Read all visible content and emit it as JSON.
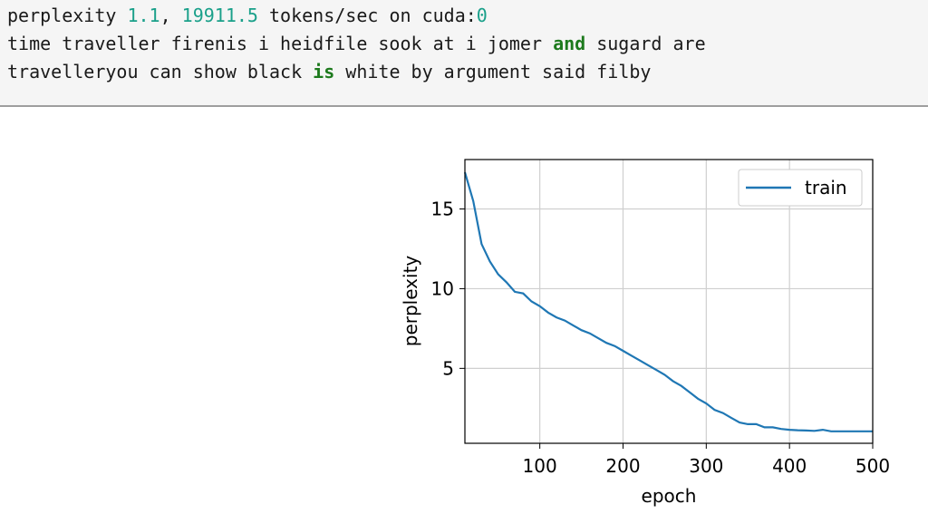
{
  "output": {
    "line1": {
      "prefix": "perplexity ",
      "perplexity": "1.1",
      "sep": ", ",
      "speed": "19911.5",
      "suffix": " tokens/sec on cuda:",
      "device_id": "0"
    },
    "line2": {
      "before": "time traveller firenis i heidfile sook at i jomer ",
      "keyword": "and",
      "after": " sugard are"
    },
    "line3": {
      "before": "travelleryou can show black ",
      "keyword": "is",
      "after": " white by argument said filby"
    }
  },
  "colors": {
    "line": "#1f77b4",
    "grid": "#cfcfcf",
    "number": "#1aa08a",
    "keyword": "#1d7a1d"
  },
  "chart_data": {
    "type": "line",
    "xlabel": "epoch",
    "ylabel": "perplexity",
    "xlim": [
      10,
      500
    ],
    "ylim": [
      0.3,
      18.1
    ],
    "xticks": [
      100,
      200,
      300,
      400,
      500
    ],
    "yticks": [
      5,
      10,
      15
    ],
    "grid": true,
    "legend_position": "top-right",
    "series": [
      {
        "name": "train",
        "x": [
          10,
          20,
          30,
          40,
          50,
          60,
          70,
          80,
          90,
          100,
          110,
          120,
          130,
          140,
          150,
          160,
          170,
          180,
          190,
          200,
          210,
          220,
          230,
          240,
          250,
          260,
          270,
          280,
          290,
          300,
          310,
          320,
          330,
          340,
          350,
          360,
          370,
          380,
          390,
          400,
          410,
          420,
          430,
          440,
          450,
          460,
          470,
          480,
          490,
          500
        ],
        "y": [
          17.3,
          15.5,
          12.8,
          11.7,
          10.9,
          10.4,
          9.8,
          9.7,
          9.2,
          8.9,
          8.5,
          8.2,
          8.0,
          7.7,
          7.4,
          7.2,
          6.9,
          6.6,
          6.4,
          6.1,
          5.8,
          5.5,
          5.2,
          4.9,
          4.6,
          4.2,
          3.9,
          3.5,
          3.1,
          2.8,
          2.4,
          2.2,
          1.9,
          1.6,
          1.5,
          1.5,
          1.3,
          1.3,
          1.2,
          1.15,
          1.12,
          1.1,
          1.08,
          1.15,
          1.05,
          1.05,
          1.05,
          1.05,
          1.05,
          1.05
        ]
      }
    ]
  }
}
